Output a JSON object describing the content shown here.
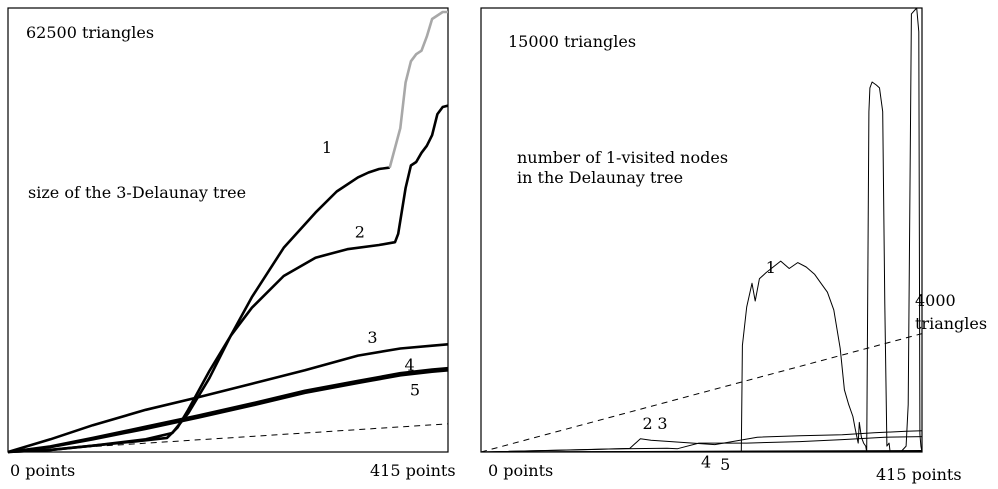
{
  "chart_data": [
    {
      "type": "line",
      "annotation": "62500 triangles",
      "label": "size of the 3-Delaunay tree",
      "x_start_label": "0 points",
      "x_end_label": "415 points",
      "xlim": [
        0,
        415
      ],
      "ylim": [
        0,
        62500
      ],
      "reference_line": {
        "style": "dashed",
        "x": [
          0,
          415
        ],
        "y": [
          0,
          4000
        ]
      },
      "series": [
        {
          "name": "1",
          "color": "#000000",
          "x": [
            0,
            40,
            80,
            130,
            155,
            170,
            190,
            210,
            230,
            260,
            290,
            310,
            330,
            340,
            350,
            360
          ],
          "y": [
            0,
            300,
            900,
            1800,
            2700,
            5500,
            10500,
            16500,
            22000,
            29000,
            34000,
            37000,
            39000,
            39700,
            40200,
            40400
          ]
        },
        {
          "name": "1",
          "color": "#a8a8a8",
          "x": [
            360,
            370,
            375,
            380,
            385,
            390,
            395,
            400,
            405,
            410,
            415
          ],
          "y": [
            40400,
            46000,
            52500,
            55500,
            56500,
            57000,
            59000,
            61500,
            62000,
            62500,
            62500
          ]
        },
        {
          "name": "2",
          "color": "#000000",
          "x": [
            0,
            40,
            80,
            120,
            150,
            160,
            170,
            190,
            210,
            230,
            260,
            290,
            320,
            350,
            365,
            368,
            375,
            380,
            385,
            390,
            395,
            400,
            405,
            410,
            415
          ],
          "y": [
            0,
            300,
            900,
            1500,
            2000,
            3500,
            6000,
            11500,
            16500,
            20500,
            25000,
            27600,
            28800,
            29400,
            29800,
            31000,
            37500,
            40700,
            41200,
            42500,
            43500,
            45000,
            48000,
            49000,
            49200
          ]
        },
        {
          "name": "3",
          "color": "#000000",
          "x": [
            0,
            40,
            80,
            130,
            180,
            230,
            280,
            330,
            370,
            400,
            415
          ],
          "y": [
            0,
            1800,
            3800,
            6000,
            7800,
            9700,
            11600,
            13700,
            14700,
            15100,
            15300
          ]
        },
        {
          "name": "4",
          "color": "#000000",
          "x": [
            0,
            40,
            80,
            130,
            180,
            230,
            280,
            330,
            370,
            400,
            415
          ],
          "y": [
            0,
            800,
            2000,
            3600,
            5200,
            6900,
            8700,
            10100,
            11200,
            11700,
            11900
          ]
        },
        {
          "name": "5",
          "color": "#000000",
          "x": [
            0,
            40,
            80,
            130,
            180,
            230,
            280,
            330,
            370,
            400,
            415
          ],
          "y": [
            0,
            700,
            1800,
            3300,
            4900,
            6600,
            8400,
            9800,
            10900,
            11400,
            11600
          ]
        }
      ],
      "curve_labels": [
        {
          "text": "1",
          "x": 296,
          "y": 42500
        },
        {
          "text": "2",
          "x": 327,
          "y": 30500
        },
        {
          "text": "3",
          "x": 339,
          "y": 15500
        },
        {
          "text": "4",
          "x": 374,
          "y": 11600
        },
        {
          "text": "5",
          "x": 379,
          "y": 8000
        }
      ]
    },
    {
      "type": "line",
      "annotation": "15000 triangles",
      "label": "number of 1-visited nodes\nin the Delaunay tree",
      "x_start_label": "0 points",
      "x_end_label": "415 points",
      "xlim": [
        0,
        415
      ],
      "ylim": [
        0,
        15000
      ],
      "reference_line": {
        "style": "dashed",
        "x": [
          0,
          415
        ],
        "y": [
          0,
          4000
        ],
        "label": "4000\ntriangles"
      },
      "series": [
        {
          "name": "1",
          "color": "#000000",
          "x": [
            0,
            200,
            245,
            246,
            250,
            255,
            258,
            262,
            268,
            275,
            282,
            290,
            298,
            306,
            314,
            320,
            326,
            332,
            338,
            342,
            346,
            350,
            352,
            355,
            356,
            358,
            360,
            362,
            363,
            365,
            366,
            368,
            372,
            375,
            378,
            380,
            382,
            384,
            385,
            395,
            400,
            402,
            405,
            410,
            412,
            413,
            414,
            415
          ],
          "y": [
            0,
            0,
            0,
            3600,
            4900,
            5700,
            5100,
            5850,
            6050,
            6250,
            6450,
            6200,
            6400,
            6250,
            6000,
            5700,
            5400,
            4800,
            3500,
            2100,
            1600,
            1200,
            800,
            300,
            1000,
            500,
            300,
            200,
            0,
            11500,
            12300,
            12500,
            12400,
            12300,
            11500,
            5000,
            200,
            300,
            0,
            0,
            200,
            1600,
            14800,
            15000,
            14200,
            600,
            200,
            0
          ]
        },
        {
          "name": "2",
          "color": "#000000",
          "x": [
            0,
            100,
            140,
            150,
            160,
            220,
            260,
            300,
            340,
            370,
            400,
            415
          ],
          "y": [
            0,
            80,
            120,
            450,
            400,
            250,
            500,
            550,
            580,
            650,
            700,
            720
          ]
        },
        {
          "name": "3",
          "color": "#000000",
          "x": [
            0,
            120,
            175,
            185,
            205,
            250,
            300,
            340,
            380,
            415
          ],
          "y": [
            0,
            100,
            130,
            110,
            300,
            300,
            350,
            420,
            500,
            520
          ]
        },
        {
          "name": "4",
          "color": "#000000",
          "x": [
            0,
            415
          ],
          "y": [
            0,
            50
          ]
        },
        {
          "name": "5",
          "color": "#000000",
          "x": [
            0,
            415
          ],
          "y": [
            0,
            30
          ]
        }
      ],
      "curve_labels": [
        {
          "text": "1",
          "x": 268,
          "y": 6050
        },
        {
          "text": "2",
          "x": 152,
          "y": 780
        },
        {
          "text": "3",
          "x": 166,
          "y": 780
        },
        {
          "text": "4",
          "x": 207,
          "y": -520
        },
        {
          "text": "5",
          "x": 225,
          "y": -600
        }
      ]
    }
  ]
}
